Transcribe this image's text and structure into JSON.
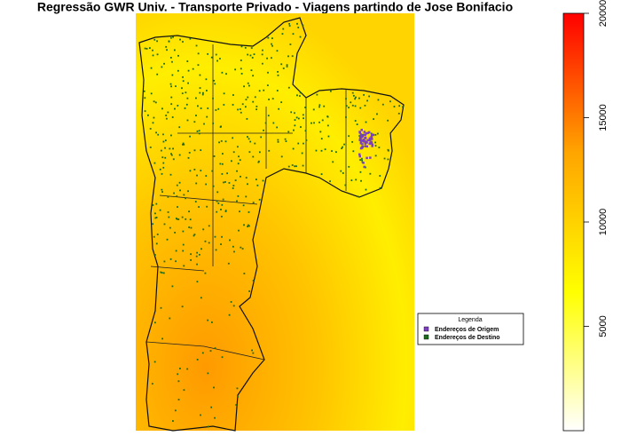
{
  "title": "Regressão GWR Univ. - Transporte Privado - Viagens partindo de Jose Bonifacio",
  "legend": {
    "title": "Legenda",
    "items": [
      {
        "label": "Endereços de Origem",
        "color": "#7b3fbf"
      },
      {
        "label": "Endereços de Destino",
        "color": "#1d6b1d"
      }
    ]
  },
  "colorbar": {
    "lim": [
      0,
      20000
    ],
    "ticks": [
      5000,
      10000,
      15000,
      20000
    ],
    "colors": [
      "#ffffff",
      "#ffff00",
      "#ffa500",
      "#ff0000"
    ]
  }
}
